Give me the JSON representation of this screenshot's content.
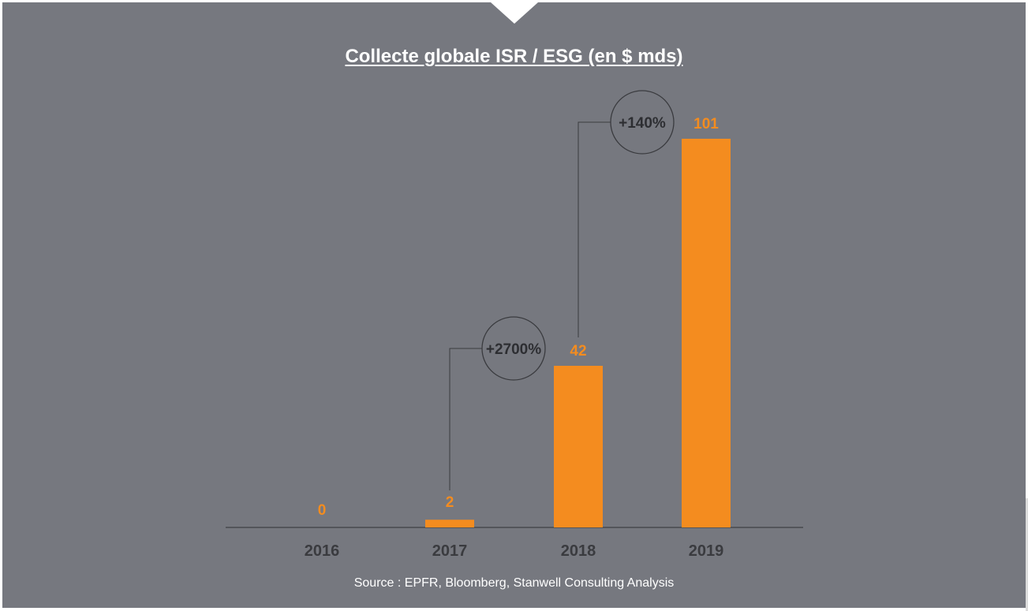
{
  "chart_data": {
    "type": "bar",
    "title": "Collecte globale ISR / ESG (en $ mds)",
    "categories": [
      "2016",
      "2017",
      "2018",
      "2019"
    ],
    "values": [
      0,
      2,
      42,
      101
    ],
    "value_labels": [
      "0",
      "2",
      "42",
      "101"
    ],
    "ylim": [
      0,
      101
    ],
    "grid": false,
    "bar_color": "#f48c1f",
    "annotations": [
      {
        "text": "+2700%",
        "from_index": 1,
        "to_index": 2
      },
      {
        "text": "+140%",
        "from_index": 2,
        "to_index": 3
      }
    ]
  },
  "source": "Source : EPFR, Bloomberg, Stanwell Consulting Analysis",
  "colors": {
    "background": "#76787f",
    "bar": "#f48c1f",
    "category_label": "#3a3b3f",
    "title": "#ffffff"
  }
}
